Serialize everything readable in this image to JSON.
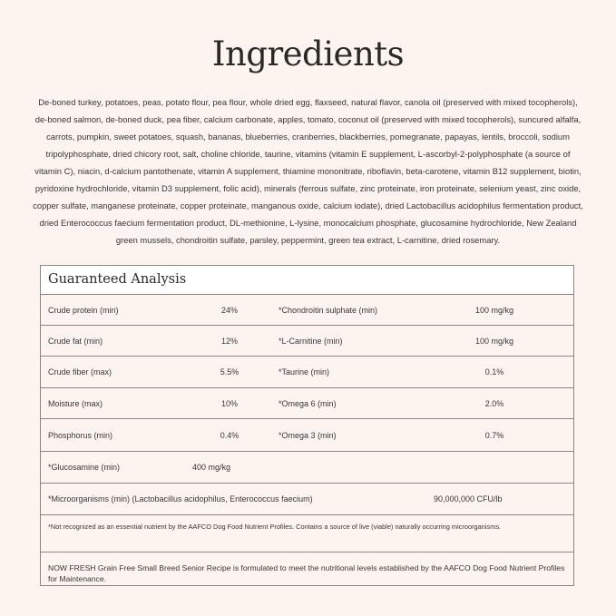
{
  "title": "Ingredients",
  "ingredients": "De-boned turkey, potatoes, peas, potato flour, pea flour, whole dried egg, flaxseed, natural flavor, canola oil (preserved with mixed tocopherols), de-boned salmon, de-boned duck, pea fiber, calcium carbonate, apples, tomato, coconut oil (preserved with mixed tocopherols), suncured alfalfa, carrots, pumpkin, sweet potatoes, squash, bananas, blueberries, cranberries, blackberries, pomegranate, papayas, lentils, broccoli, sodium tripolyphosphate, dried chicory root, salt, choline chloride, taurine, vitamins (vitamin E supplement, L-ascorbyl-2-polyphosphate (a source of vitamin C), niacin, d-calcium pantothenate, vitamin A supplement, thiamine mononitrate, riboflavin, beta-carotene, vitamin B12 supplement, biotin, pyridoxine hydrochloride, vitamin D3 supplement, folic acid), minerals (ferrous sulfate, zinc proteinate, iron proteinate, selenium yeast, zinc oxide, copper sulfate, manganese proteinate, copper proteinate, manganous oxide, calcium iodate), dried Lactobacillus acidophilus fermentation product, dried Enterococcus faecium fermentation product, DL-methionine, L-lysine, monocalcium phosphate, glucosamine hydrochloride, New Zealand green mussels, chondroitin sulfate, parsley, peppermint, green tea extract, L-carnitine, dried rosemary.",
  "analysis": {
    "title": "Guaranteed Analysis",
    "rows": [
      {
        "n1": "Crude protein (min)",
        "v1": "24%",
        "n2": "*Chondroitin sulphate (min)",
        "v2": "100 mg/kg"
      },
      {
        "n1": "Crude fat (min)",
        "v1": "12%",
        "n2": "*L-Carnitine (min)",
        "v2": "100 mg/kg"
      },
      {
        "n1": "Crude fiber (max)",
        "v1": "5.5%",
        "n2": "*Taurine (min)",
        "v2": "0.1%"
      },
      {
        "n1": "Moisture (max)",
        "v1": "10%",
        "n2": "*Omega 6 (min)",
        "v2": "2.0%"
      },
      {
        "n1": "Phosphorus (min)",
        "v1": "0.4%",
        "n2": "*Omega 3 (min)",
        "v2": "0.7%"
      }
    ],
    "glucosamine": {
      "name": "*Glucosamine (min)",
      "value": "400 mg/kg"
    },
    "microorganisms": {
      "name": "*Microorganisms (min) (Lactobacillus acidophilus, Enterococcus faecium)",
      "value": "90,000,000 CFU/lb"
    },
    "footnote": "*Not recognized as an essential nutrient by the AAFCO Dog Food Nutrient Profiles. Contains a source of live (viable) naturally occurring microorganisms.",
    "statement": "NOW FRESH Grain Free Small Breed Senior Recipe is formulated to meet the nutritional levels established by the AAFCO Dog Food Nutrient Profiles for Maintenance."
  }
}
